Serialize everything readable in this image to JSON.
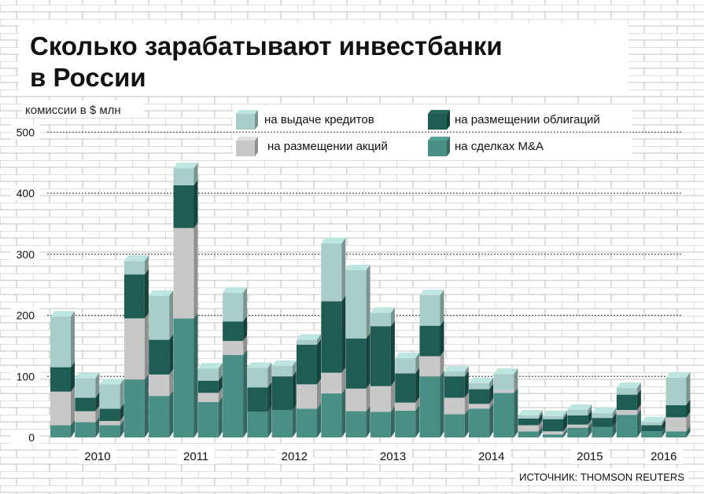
{
  "chart_data": {
    "type": "bar",
    "stacked": true,
    "title": "Сколько зарабатывают инвестбанки в России",
    "ylabel": "комиссии в $ млн",
    "ylim": [
      0,
      500
    ],
    "y_ticks": [
      0,
      100,
      200,
      300,
      400,
      500
    ],
    "grid": true,
    "legend": [
      "на выдаче кредитов",
      "на размещении облигаций",
      "на размещении акций",
      "на сделках M&A"
    ],
    "years": [
      {
        "label": "2010",
        "start": 0,
        "end": 3
      },
      {
        "label": "2011",
        "start": 4,
        "end": 7
      },
      {
        "label": "2012",
        "start": 8,
        "end": 11
      },
      {
        "label": "2013",
        "start": 12,
        "end": 15
      },
      {
        "label": "2014",
        "start": 16,
        "end": 19
      },
      {
        "label": "2015",
        "start": 20,
        "end": 23
      },
      {
        "label": "2016",
        "start": 24,
        "end": 25
      }
    ],
    "series": [
      {
        "name": "на сделках M&A",
        "color": "#4a8f85",
        "values": [
          20,
          25,
          20,
          95,
          68,
          195,
          58,
          135,
          42,
          45,
          47,
          72,
          43,
          42,
          44,
          100,
          38,
          47,
          73,
          10,
          5,
          16,
          17,
          37,
          10,
          10
        ]
      },
      {
        "name": "на размещении акций",
        "color": "#c8c8c8",
        "values": [
          55,
          18,
          7,
          100,
          35,
          148,
          15,
          23,
          0,
          0,
          40,
          34,
          37,
          42,
          13,
          33,
          27,
          8,
          5,
          10,
          5,
          5,
          0,
          8,
          0,
          23
        ]
      },
      {
        "name": "на размещении облигаций",
        "color": "#1f5c54",
        "values": [
          40,
          22,
          20,
          72,
          57,
          70,
          20,
          32,
          40,
          55,
          65,
          117,
          82,
          98,
          48,
          50,
          35,
          24,
          0,
          11,
          20,
          15,
          15,
          25,
          10,
          20
        ]
      },
      {
        "name": "на выдаче кредитов",
        "color": "#a9cdc9",
        "values": [
          83,
          32,
          40,
          22,
          72,
          28,
          20,
          47,
          32,
          17,
          8,
          95,
          112,
          22,
          25,
          50,
          8,
          10,
          26,
          5,
          5,
          9,
          8,
          11,
          5,
          45
        ]
      }
    ]
  },
  "source": "ИСТОЧНИК: THOMSON REUTERS"
}
